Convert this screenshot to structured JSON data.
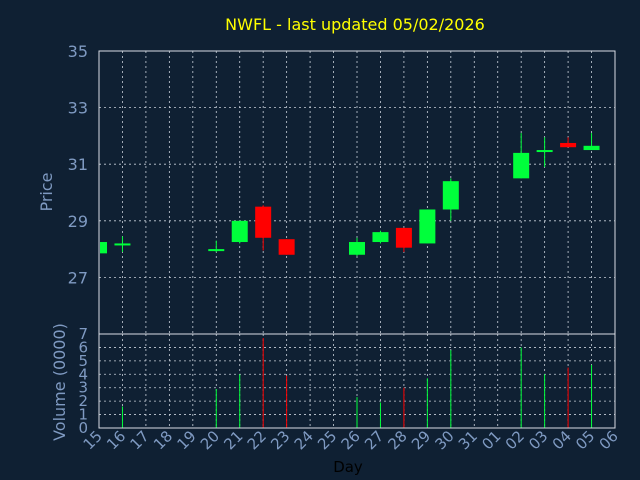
{
  "chart_data": {
    "type": "candlestick",
    "title": "NWFL - last updated 05/02/2026",
    "xlabel": "Day",
    "price_ylabel": "Price",
    "volume_ylabel": "Volume (0000)",
    "price_ylim": [
      25,
      35
    ],
    "price_ticks": [
      27,
      29,
      31,
      33,
      35
    ],
    "volume_ylim": [
      0,
      7
    ],
    "volume_ticks": [
      0,
      1,
      2,
      3,
      4,
      5,
      6,
      7
    ],
    "grid": true,
    "x_ticks": [
      "15",
      "16",
      "17",
      "18",
      "19",
      "20",
      "21",
      "22",
      "23",
      "24",
      "25",
      "26",
      "27",
      "28",
      "29",
      "30",
      "31",
      "01",
      "02",
      "03",
      "04",
      "05",
      "06"
    ],
    "candles": [
      {
        "day": "15",
        "open": 27.85,
        "high": 28.3,
        "low": 27.85,
        "close": 28.25,
        "volume": 0
      },
      {
        "day": "16",
        "open": 28.2,
        "high": 28.45,
        "low": 27.9,
        "close": 28.2,
        "volume": 1.6
      },
      {
        "day": "20",
        "open": 27.95,
        "high": 28.3,
        "low": 27.9,
        "close": 28.0,
        "volume": 2.9
      },
      {
        "day": "21",
        "open": 28.25,
        "high": 29.0,
        "low": 28.2,
        "close": 29.0,
        "volume": 4.0
      },
      {
        "day": "22",
        "open": 29.5,
        "high": 29.55,
        "low": 27.95,
        "close": 28.4,
        "volume": 6.7
      },
      {
        "day": "23",
        "open": 28.35,
        "high": 28.35,
        "low": 27.8,
        "close": 27.8,
        "volume": 3.9
      },
      {
        "day": "26",
        "open": 27.8,
        "high": 28.4,
        "low": 27.75,
        "close": 28.25,
        "volume": 2.3
      },
      {
        "day": "27",
        "open": 28.25,
        "high": 28.65,
        "low": 28.2,
        "close": 28.6,
        "volume": 1.9
      },
      {
        "day": "28",
        "open": 28.75,
        "high": 28.75,
        "low": 27.9,
        "close": 28.05,
        "volume": 3.0
      },
      {
        "day": "29",
        "open": 28.2,
        "high": 29.4,
        "low": 28.2,
        "close": 29.4,
        "volume": 3.7
      },
      {
        "day": "30",
        "open": 29.4,
        "high": 30.5,
        "low": 29.0,
        "close": 30.4,
        "volume": 5.8
      },
      {
        "day": "02",
        "open": 30.5,
        "high": 32.1,
        "low": 30.5,
        "close": 31.4,
        "volume": 6.0
      },
      {
        "day": "03",
        "open": 31.45,
        "high": 31.95,
        "low": 30.9,
        "close": 31.5,
        "volume": 4.0
      },
      {
        "day": "04",
        "open": 31.75,
        "high": 31.95,
        "low": 31.6,
        "close": 31.6,
        "volume": 4.5
      },
      {
        "day": "05",
        "open": 31.5,
        "high": 32.1,
        "low": 31.5,
        "close": 31.65,
        "volume": 4.7
      }
    ],
    "colors": {
      "background": "#0f2033",
      "up": "#00ff3b",
      "down": "#ff0000",
      "title": "#ffff00",
      "axis_text": "#7f9ac2",
      "grid": "#c8d0da",
      "frame": "#d8dde4"
    }
  }
}
